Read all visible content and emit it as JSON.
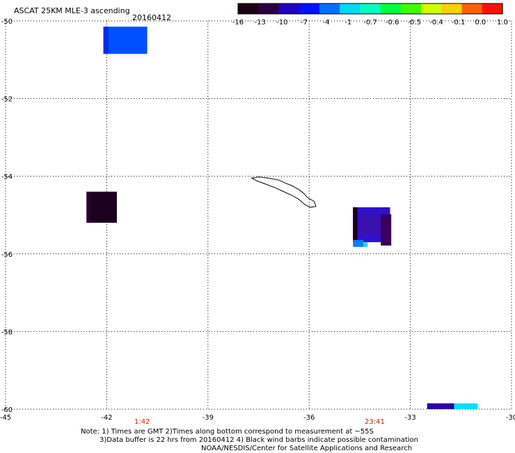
{
  "header": {
    "title": "ASCAT 25KM MLE-3 ascending",
    "date": "20160412"
  },
  "colorbar": {
    "labels": [
      "-16",
      "-13",
      "-10",
      "-7",
      "-4",
      "-1",
      "-0.7",
      "-0.6",
      "-0.5",
      "-0.4",
      "-0.1",
      "0.0",
      "1.0"
    ],
    "colors": [
      "#1a0010",
      "#2a0040",
      "#2000c0",
      "#0010ff",
      "#0070ff",
      "#00d8ff",
      "#00ffc0",
      "#00ff40",
      "#40ff00",
      "#d0ff00",
      "#ffd000",
      "#ff6000",
      "#ff1000"
    ]
  },
  "map": {
    "lon_ticks": [
      "-45",
      "-42",
      "-39",
      "-36",
      "-33",
      "-30"
    ],
    "lat_ticks": [
      "-50",
      "-52",
      "-54",
      "-56",
      "-58",
      "-60"
    ],
    "lon_range": [
      -45,
      -30
    ],
    "lat_range": [
      -60,
      -50
    ],
    "land": "South Georgia",
    "swaths": [
      {
        "lon": [
          -42.1,
          -40.8
        ],
        "lat": [
          -50.15,
          -50.85
        ],
        "color": "#0050ff",
        "edge": "#0030e0"
      },
      {
        "lon": [
          -42.6,
          -41.7
        ],
        "lat": [
          -54.4,
          -55.2
        ],
        "color": "#1c0020",
        "edge": "#2a0030"
      },
      {
        "lon": [
          -34.7,
          -33.6
        ],
        "lat": [
          -54.8,
          -55.7
        ],
        "color": "#3010d0",
        "edge": "#1a0020"
      },
      {
        "lon": [
          -32.5,
          -31.7
        ],
        "lat": [
          -59.85,
          -60.0
        ],
        "color": "#3000a0",
        "edge": "#3000a0"
      },
      {
        "lon": [
          -31.7,
          -31.0
        ],
        "lat": [
          -59.85,
          -60.0
        ],
        "color": "#00e0ff",
        "edge": "#00e0ff"
      }
    ]
  },
  "times": {
    "first": "1:42",
    "last": "23:41"
  },
  "notes": {
    "line1": "Note: 1) Times are GMT 2)Times along bottom correspond to measurement at ~55S",
    "line2": "3)Data buffer is 22 hrs from 20160412 4) Black wind barbs indicate possible contamination",
    "line3": "NOAA/NESDIS/Center for Satellite Applications and Research"
  }
}
